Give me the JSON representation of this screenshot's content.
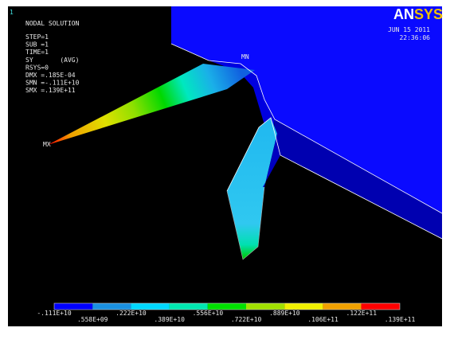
{
  "viewport_number": "1",
  "title": "NODAL SOLUTION",
  "info": [
    "STEP=1",
    "SUB =1",
    "TIME=1",
    "SY       (AVG)",
    "RSYS=0",
    "DMX =.185E-04",
    "SMN =-.111E+10",
    "SMX =.139E+11"
  ],
  "logo": {
    "part1": "AN",
    "part2": "SYS"
  },
  "date": "JUN 15 2011",
  "time": "22:36:06",
  "markers": {
    "min": "MN",
    "max": "MX"
  },
  "legend": {
    "labels": [
      "-.111E+10",
      ".558E+09",
      ".222E+10",
      ".389E+10",
      ".556E+10",
      ".722E+10",
      ".889E+10",
      ".106E+11",
      ".122E+11",
      ".139E+11"
    ]
  }
}
